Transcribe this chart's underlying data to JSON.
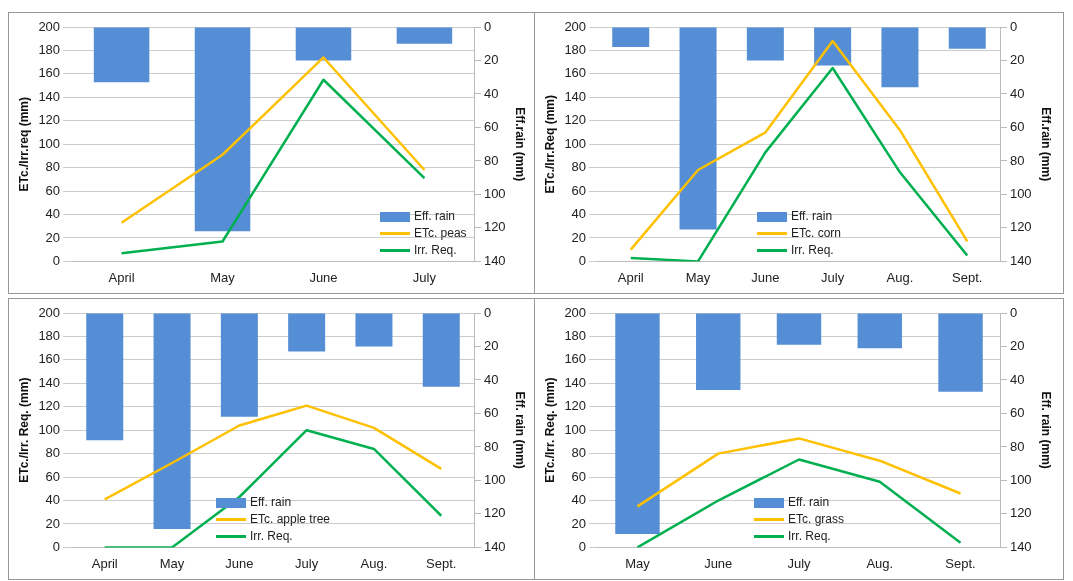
{
  "chart_data": [
    {
      "type": "bar",
      "categories": [
        "April",
        "May",
        "June",
        "July"
      ],
      "ylabel": "ETc./Irr.req (mm)",
      "y2label": "Eff.rain (mm)",
      "ylim": [
        0,
        200
      ],
      "yticks": [
        0,
        20,
        40,
        60,
        80,
        100,
        120,
        140,
        160,
        180,
        200
      ],
      "y2lim": [
        140,
        0
      ],
      "y2ticks": [
        0,
        20,
        40,
        60,
        80,
        100,
        120,
        140
      ],
      "grid": "y",
      "legend": "bottom right",
      "marker": "none",
      "series": [
        {
          "name": "Eff. rain",
          "axis": "y2",
          "color": "#558ed5",
          "values": [
            33,
            122,
            20,
            10
          ]
        },
        {
          "name": "ETc. peas",
          "type": "line",
          "color": "#ffc000",
          "values": [
            33,
            91,
            174,
            78
          ]
        },
        {
          "name": "Irr. Req.",
          "type": "line",
          "color": "#00b050",
          "values": [
            7,
            17,
            155,
            71
          ]
        }
      ]
    },
    {
      "type": "bar",
      "categories": [
        "April",
        "May",
        "June",
        "July",
        "Aug.",
        "Sept."
      ],
      "ylabel": "ETc./Irr.Req (mm)",
      "y2label": "Eff.rain (mm)",
      "ylim": [
        0,
        200
      ],
      "yticks": [
        0,
        20,
        40,
        60,
        80,
        100,
        120,
        140,
        160,
        180,
        200
      ],
      "y2lim": [
        140,
        0
      ],
      "y2ticks": [
        0,
        20,
        40,
        60,
        80,
        100,
        120,
        140
      ],
      "grid": "y",
      "legend": "bottom",
      "marker": "none",
      "series": [
        {
          "name": "Eff. rain",
          "axis": "y2",
          "color": "#558ed5",
          "values": [
            12,
            121,
            20,
            23,
            36,
            13
          ]
        },
        {
          "name": "ETc. corn",
          "type": "line",
          "color": "#ffc000",
          "values": [
            10,
            78,
            110,
            188,
            112,
            17
          ]
        },
        {
          "name": "Irr. Req.",
          "type": "line",
          "color": "#00b050",
          "values": [
            3,
            0,
            93,
            165,
            76,
            5
          ]
        }
      ]
    },
    {
      "type": "bar",
      "categories": [
        "April",
        "May",
        "June",
        "July",
        "Aug.",
        "Sept."
      ],
      "ylabel": "ETc./Irr. Req. (mm)",
      "y2label": "Eff. rain (mm)",
      "ylim": [
        0,
        200
      ],
      "yticks": [
        0,
        20,
        40,
        60,
        80,
        100,
        120,
        140,
        160,
        180,
        200
      ],
      "y2lim": [
        140,
        0
      ],
      "y2ticks": [
        0,
        20,
        40,
        60,
        80,
        100,
        120,
        140
      ],
      "grid": "y",
      "legend": "bottom",
      "marker": "none",
      "series": [
        {
          "name": "Eff. rain",
          "axis": "y2",
          "color": "#558ed5",
          "values": [
            76,
            129,
            62,
            23,
            20,
            44
          ]
        },
        {
          "name": "ETc. apple tree",
          "type": "line",
          "color": "#ffc000",
          "values": [
            41,
            72,
            104,
            121,
            102,
            67
          ]
        },
        {
          "name": "Irr. Req.",
          "type": "line",
          "color": "#00b050",
          "values": [
            0,
            0,
            43,
            100,
            84,
            27
          ]
        }
      ]
    },
    {
      "type": "bar",
      "categories": [
        "May",
        "June",
        "July",
        "Aug.",
        "Sept."
      ],
      "ylabel": "ETc./Irr. Req. (mm)",
      "y2label": "Eff. rain (mm)",
      "ylim": [
        0,
        200
      ],
      "yticks": [
        0,
        20,
        40,
        60,
        80,
        100,
        120,
        140,
        160,
        180,
        200
      ],
      "y2lim": [
        140,
        0
      ],
      "y2ticks": [
        0,
        20,
        40,
        60,
        80,
        100,
        120,
        140
      ],
      "grid": "y",
      "legend": "bottom",
      "marker": "none",
      "series": [
        {
          "name": "Eff. rain",
          "axis": "y2",
          "color": "#558ed5",
          "values": [
            132,
            46,
            19,
            21,
            47
          ]
        },
        {
          "name": "ETc. grass",
          "type": "line",
          "color": "#ffc000",
          "values": [
            35,
            80,
            93,
            74,
            46
          ]
        },
        {
          "name": "Irr. Req.",
          "type": "line",
          "color": "#00b050",
          "values": [
            0,
            40,
            75,
            56,
            4
          ]
        }
      ]
    }
  ]
}
